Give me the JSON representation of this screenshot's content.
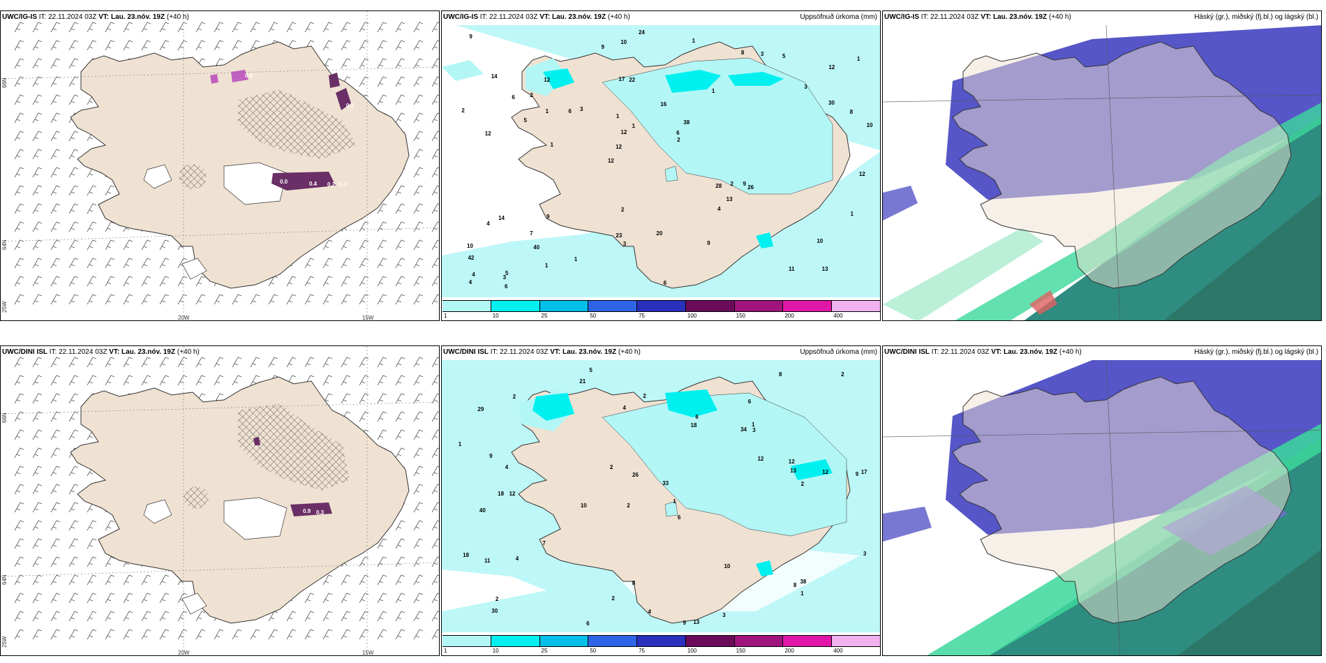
{
  "rows": [
    {
      "model_label": "UWC/IG-IS",
      "it_label": "IT:",
      "it_value": "22.11.2024 03Z",
      "vt_label": "VT: Lau. 23.nóv. 19Z",
      "lead": "(+40 h)"
    },
    {
      "model_label": "UWC/DINI ISL",
      "it_label": "IT:",
      "it_value": "22.11.2024 03Z",
      "vt_label": "VT: Lau. 23.nóv. 19Z",
      "lead": "(+40 h)"
    }
  ],
  "precip_title": "Uppsöfnuð úrkoma (mm)",
  "cloud_title": "Háský (gr.), miðský (fj.bl.) og lágský (bl.)",
  "lon_labels": [
    "20W",
    "15W"
  ],
  "lat_labels": [
    "66N",
    "64N",
    "25W"
  ],
  "precip_colorbar": {
    "ticks": [
      "1",
      "10",
      "25",
      "50",
      "75",
      "100",
      "150",
      "200",
      "400"
    ],
    "colors": [
      "#b3f6f6",
      "#00f0f0",
      "#00bfe8",
      "#2e64e6",
      "#2a2fbd",
      "#6b0b5a",
      "#a0147e",
      "#e017a8",
      "#f0b3ef"
    ]
  },
  "colors": {
    "land": "#efe2d2",
    "precip_light": "#b3f6f6",
    "precip_medium": "#00f0f0",
    "high_cloud": "#5656c8",
    "mid_cloud": "#2e8c80",
    "low_cloud": "#3cd89c",
    "snow_purple": "#6a2f66"
  },
  "precip_values_top": [
    "13",
    "12",
    "12",
    "12",
    "1",
    "5",
    "17",
    "16",
    "14",
    "3",
    "42",
    "40",
    "22",
    "38",
    "26",
    "14",
    "10",
    "10",
    "28",
    "30",
    "12",
    "23",
    "12",
    "12",
    "8",
    "9",
    "11",
    "10",
    "9",
    "6",
    "6",
    "5",
    "4",
    "1",
    "8",
    "6",
    "4",
    "3",
    "2",
    "4",
    "3",
    "1",
    "13",
    "9",
    "7",
    "6",
    "4",
    "20",
    "5",
    "24",
    "1",
    "2",
    "2",
    "3",
    "3",
    "1",
    "9",
    "1",
    "1",
    "2",
    "1",
    "2",
    "1",
    "10",
    "9",
    "6",
    "12",
    "1"
  ],
  "precip_values_bottom": [
    "5",
    "6",
    "9",
    "2",
    "6",
    "12",
    "29",
    "34",
    "40",
    "18",
    "33",
    "30",
    "21",
    "10",
    "9",
    "13",
    "8",
    "8",
    "12",
    "7",
    "4",
    "18",
    "17",
    "12",
    "18",
    "9",
    "26",
    "13",
    "38",
    "11",
    "8",
    "6",
    "4",
    "2",
    "10",
    "3",
    "12",
    "2",
    "2",
    "2",
    "2",
    "6",
    "3",
    "2",
    "4",
    "3",
    "1",
    "1",
    "1",
    "1",
    "4",
    "2"
  ],
  "snow_values_top": [
    "0.0",
    "0.4",
    "0.2",
    "0.3",
    "0.0",
    "0.2"
  ],
  "snow_values_bottom": [
    "0.9",
    "0.3"
  ]
}
